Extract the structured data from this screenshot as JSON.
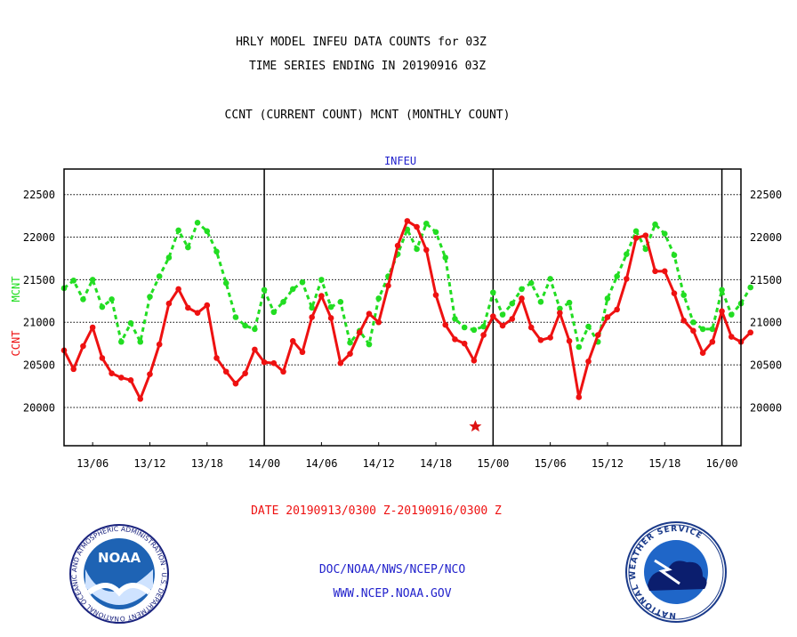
{
  "header": {
    "title_line1": "HRLY MODEL INFEU DATA COUNTS for 03Z",
    "title_line2": "TIME SERIES ENDING IN 20190916 03Z",
    "subtitle": "CCNT (CURRENT COUNT) MCNT (MONTHLY COUNT)"
  },
  "footer": {
    "date_range": "DATE 20190913/0300 Z-20190916/0300 Z",
    "org": "DOC/NOAA/NWS/NCEP/NCO",
    "url": "WWW.NCEP.NOAA.GOV"
  },
  "logos": {
    "noaa": {
      "text": "NOAA",
      "ring_text": "NATIONAL OCEANIC AND ATMOSPHERIC ADMINISTRATION · U.S. DEPARTMENT OF COMMERCE"
    },
    "nws": {
      "ring_text": "NATIONAL WEATHER SERVICE"
    }
  },
  "chart_data": {
    "type": "line",
    "title": "INFEU",
    "ylabel_left_ccnt": "CCNT",
    "ylabel_left_mcnt": "MCNT",
    "ylim": [
      19550,
      22800
    ],
    "yticks": [
      20000,
      20500,
      21000,
      21500,
      22000,
      22500
    ],
    "grid": true,
    "xlim": [
      0,
      71
    ],
    "x_tick_positions": [
      3,
      9,
      15,
      21,
      27,
      33,
      39,
      45,
      51,
      57,
      63,
      69
    ],
    "x_tick_labels": [
      "13/06",
      "13/12",
      "13/18",
      "14/00",
      "14/06",
      "14/12",
      "14/18",
      "15/00",
      "15/06",
      "15/12",
      "15/18",
      "16/00"
    ],
    "day_boundaries": [
      21,
      45,
      69
    ],
    "series": [
      {
        "name": "CCNT",
        "color": "#ee1111",
        "style": "solid",
        "values": [
          20670,
          20450,
          20720,
          20940,
          20580,
          20400,
          20350,
          20320,
          20100,
          20390,
          20740,
          21220,
          21390,
          21170,
          21110,
          21200,
          20580,
          20420,
          20280,
          20400,
          20680,
          20530,
          20520,
          20420,
          20780,
          20650,
          21060,
          21310,
          21050,
          20520,
          20630,
          20880,
          21100,
          21000,
          21430,
          21900,
          22190,
          22120,
          21850,
          21320,
          20970,
          20800,
          20750,
          20550,
          20850,
          21070,
          20960,
          21040,
          21280,
          20940,
          20790,
          20820,
          21110,
          20780,
          20120,
          20540,
          20850,
          21060,
          21150,
          21510,
          21990,
          22020,
          21600,
          21600,
          21340,
          21020,
          20900,
          20640,
          20770,
          21130,
          20830,
          20770,
          20880
        ]
      },
      {
        "name": "MCNT",
        "color": "#22dd22",
        "style": "dashed",
        "values": [
          21400,
          21490,
          21270,
          21500,
          21180,
          21270,
          20770,
          20990,
          20770,
          21300,
          21540,
          21760,
          22080,
          21880,
          22170,
          22070,
          21830,
          21460,
          21060,
          20960,
          20920,
          21380,
          21120,
          21240,
          21390,
          21470,
          21170,
          21500,
          21180,
          21240,
          20760,
          20900,
          20740,
          21280,
          21540,
          21800,
          22090,
          21860,
          22160,
          22060,
          21760,
          21040,
          20940,
          20910,
          20950,
          21350,
          21090,
          21220,
          21390,
          21460,
          21240,
          21510,
          21160,
          21230,
          20710,
          20950,
          20770,
          21280,
          21540,
          21800,
          22070,
          21860,
          22150,
          22040,
          21790,
          21320,
          21000,
          20920,
          20920,
          21380,
          21090,
          21220,
          21410
        ]
      }
    ]
  }
}
